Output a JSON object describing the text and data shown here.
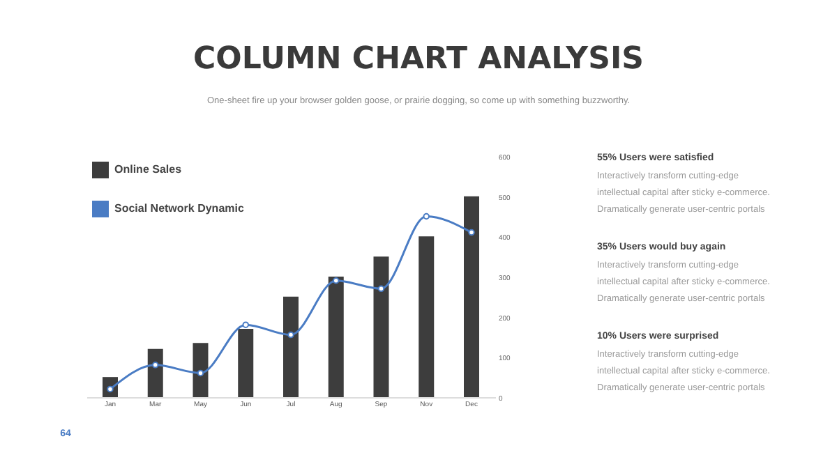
{
  "chart_data": {
    "type": "bar",
    "title": "COLUMN CHART ANALYSIS",
    "subtitle": "One-sheet fire up your browser golden goose, or prairie dogging, so come up with something buzzworthy.",
    "categories": [
      "Jan",
      "Mar",
      "May",
      "Jun",
      "Jul",
      "Aug",
      "Sep",
      "Nov",
      "Dec"
    ],
    "series": [
      {
        "name": "Online Sales",
        "color": "#3d3d3d",
        "values": [
          50,
          120,
          135,
          170,
          250,
          300,
          350,
          400,
          500
        ]
      },
      {
        "name": "Social Network Dynamic",
        "type": "line",
        "color": "#4a7cc4",
        "values": [
          20,
          80,
          60,
          180,
          155,
          290,
          270,
          450,
          410
        ]
      }
    ],
    "ylim": [
      0,
      600
    ],
    "yticks": [
      0,
      100,
      200,
      300,
      400,
      500,
      600
    ],
    "grid": false,
    "legend": "top left",
    "marker": "circle",
    "line_style": "solid",
    "annotations": [
      "55%  Users were satisfied",
      "Interactively transform cutting-edge\nintellectual capital after sticky e-commerce.\nDramatically generate user-centric portals",
      "35%  Users would buy again",
      "Interactively transform cutting-edge\nintellectual capital after sticky e-commerce.\nDramatically generate user-centric portals",
      "10%  Users were surprised",
      "Interactively transform cutting-edge\nintellectual capital after sticky e-commerce.\nDramatically generate user-centric portals",
      "64"
    ]
  }
}
